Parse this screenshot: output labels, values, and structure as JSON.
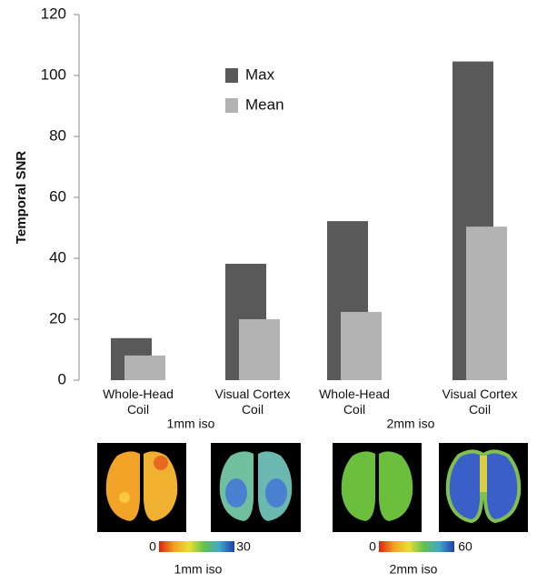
{
  "chart_data": {
    "type": "bar",
    "ylabel": "Temporal SNR",
    "categories": [
      "Whole-Head Coil",
      "Visual Cortex Coil",
      "Whole-Head Coil",
      "Visual Cortex Coil"
    ],
    "group_labels": [
      "1mm iso",
      "2mm iso"
    ],
    "series": [
      {
        "name": "Max",
        "color": "#595959",
        "values": [
          13.8,
          38.2,
          52.2,
          104.6
        ]
      },
      {
        "name": "Mean",
        "color": "#b3b3b3",
        "values": [
          8.1,
          20.0,
          22.4,
          50.4
        ]
      }
    ],
    "ylim": [
      0,
      120
    ],
    "yticks": [
      0,
      20,
      40,
      60,
      80,
      100,
      120
    ],
    "legend": "upper center"
  },
  "maps": [
    {
      "colorbar_labels": [
        "0",
        "30"
      ],
      "caption": "1mm iso"
    },
    {
      "colorbar_labels": [
        "0",
        "60"
      ],
      "caption": "2mm iso"
    }
  ]
}
